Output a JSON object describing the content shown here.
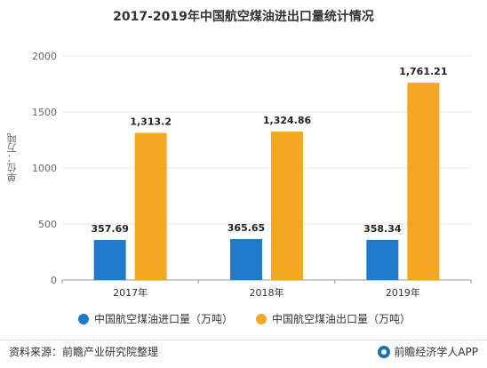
{
  "chart_data": {
    "type": "bar",
    "title": "2017-2019年中国航空煤油进出口量统计情况",
    "ylabel": "单位：万吨",
    "xlabel": "",
    "categories": [
      "2017年",
      "2018年",
      "2019年"
    ],
    "ylim": [
      0,
      2000
    ],
    "yticks": [
      0,
      500,
      1000,
      1500,
      2000
    ],
    "grid": true,
    "legend_position": "bottom",
    "series": [
      {
        "name": "中国航空煤油进口量（万吨）",
        "color": "#1f7bc9",
        "values": [
          357.69,
          365.65,
          358.34
        ],
        "labels": [
          "357.69",
          "365.65",
          "358.34"
        ]
      },
      {
        "name": "中国航空煤油出口量（万吨）",
        "color": "#f5a623",
        "values": [
          1313.2,
          1324.86,
          1761.21
        ],
        "labels": [
          "1,313.2",
          "1,324.86",
          "1,761.21"
        ]
      }
    ]
  },
  "footer": {
    "source": "资料来源：前瞻产业研究院整理",
    "brand": "前瞻经济学人APP"
  },
  "colors": {
    "import": "#1f7bc9",
    "export": "#f5a623",
    "grid": "#e5e5e5"
  },
  "icons": {
    "brand": "logo-circle-icon"
  }
}
